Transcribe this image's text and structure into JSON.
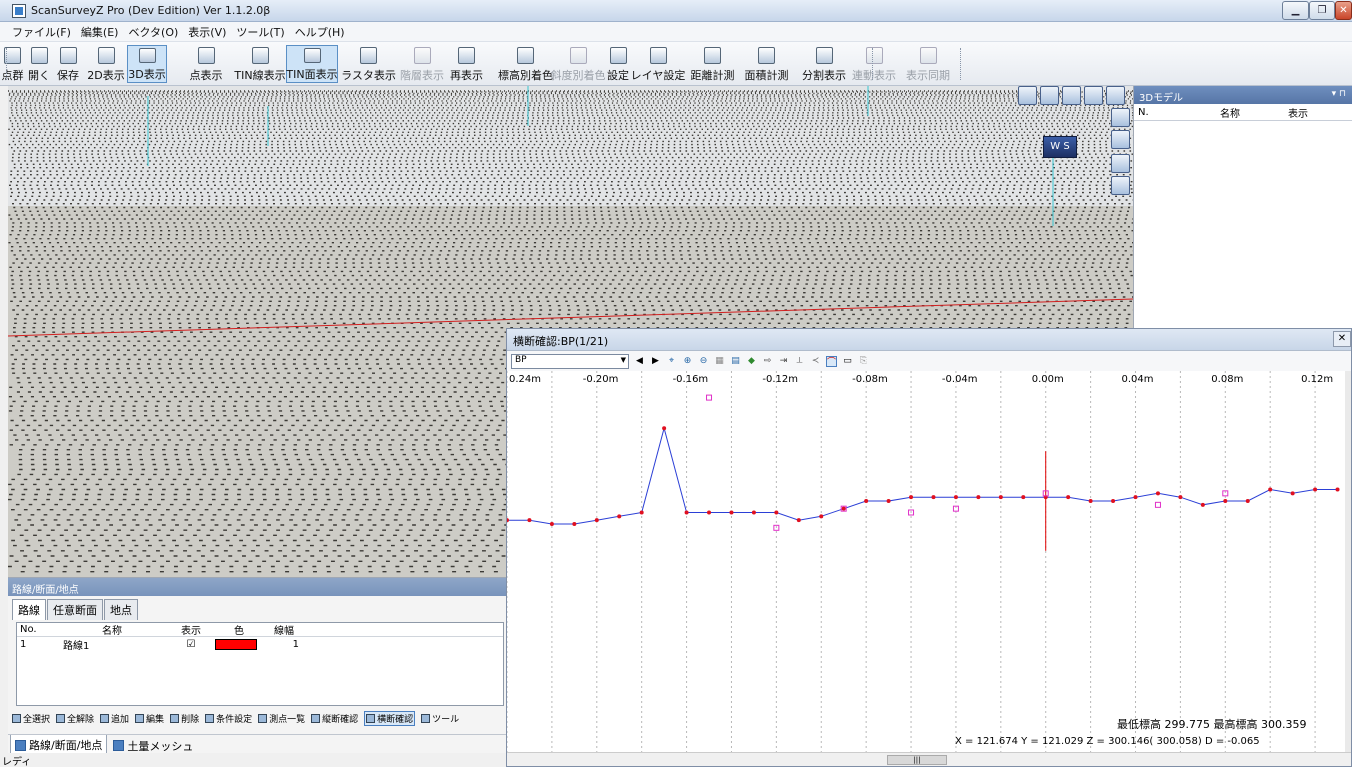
{
  "window": {
    "title": "ScanSurveyZ Pro (Dev Edition) Ver 1.1.2.0β"
  },
  "menu": [
    "ファイル(F)",
    "編集(E)",
    "ベクタ(O)",
    "表示(V)",
    "ツール(T)",
    "ヘルプ(H)"
  ],
  "toolbar": [
    {
      "label": "点群",
      "state": "normal"
    },
    {
      "label": "開く",
      "state": "normal"
    },
    {
      "label": "保存",
      "state": "normal"
    },
    {
      "label": "2D表示",
      "state": "normal"
    },
    {
      "label": "3D表示",
      "state": "active"
    },
    {
      "label": "点表示",
      "state": "normal"
    },
    {
      "label": "TIN線表示",
      "state": "normal"
    },
    {
      "label": "TIN面表示",
      "state": "active"
    },
    {
      "label": "ラスタ表示",
      "state": "normal"
    },
    {
      "label": "階層表示",
      "state": "disabled"
    },
    {
      "label": "再表示",
      "state": "normal"
    },
    {
      "label": "標高別着色",
      "state": "normal"
    },
    {
      "label": "斜度別着色",
      "state": "disabled"
    },
    {
      "label": "設定",
      "state": "normal"
    },
    {
      "label": "レイヤ設定",
      "state": "normal"
    },
    {
      "label": "距離計測",
      "state": "normal"
    },
    {
      "label": "面積計測",
      "state": "normal"
    },
    {
      "label": "分割表示",
      "state": "normal"
    },
    {
      "label": "連動表示",
      "state": "disabled"
    },
    {
      "label": "表示同期",
      "state": "disabled"
    }
  ],
  "model_panel": {
    "title": "3Dモデル",
    "columns": [
      "N.",
      "名称",
      "表示"
    ]
  },
  "viewport": {
    "compass_label": "W S"
  },
  "route_panel": {
    "title": "路線/断面/地点",
    "tabs": [
      "路線",
      "任意断面",
      "地点"
    ],
    "columns": [
      "No.",
      "名称",
      "表示",
      "色",
      "線幅"
    ],
    "rows": [
      {
        "no": "1",
        "name": "路線1",
        "visible": "☑",
        "color": "#ff0000",
        "width": "1"
      }
    ],
    "tools": [
      "全選択",
      "全解除",
      "追加",
      "編集",
      "削除",
      "条件設定",
      "測点一覧",
      "縦断確認",
      "横断確認",
      "ツール"
    ],
    "bottom_tabs": [
      "路線/断面/地点",
      "土量メッシュ"
    ]
  },
  "status": "レディ",
  "cross_section": {
    "title": "横断確認:BP(1/21)",
    "station_select": "BP",
    "close": "✕",
    "info_line1": "最低標高    299.775  最高標高    300.359",
    "info_line2": "X =    121.674  Y =    121.029  Z =    300.146(   300.058)  D =    -0.065",
    "chart_data": {
      "type": "line",
      "x_ticks": [
        "0.24m",
        "-0.20m",
        "-0.16m",
        "-0.12m",
        "-0.08m",
        "-0.04m",
        "0.00m",
        "0.04m",
        "0.08m",
        "0.12m",
        "0.1"
      ],
      "center_x": 0.0,
      "series": [
        {
          "points": [
            [
              -0.24,
              299.94
            ],
            [
              -0.23,
              299.94
            ],
            [
              -0.22,
              299.935
            ],
            [
              -0.21,
              299.935
            ],
            [
              -0.2,
              299.94
            ],
            [
              -0.19,
              299.945
            ],
            [
              -0.18,
              299.95
            ],
            [
              -0.17,
              300.06
            ],
            [
              -0.16,
              299.95
            ],
            [
              -0.15,
              299.95
            ],
            [
              -0.14,
              299.95
            ],
            [
              -0.13,
              299.95
            ],
            [
              -0.12,
              299.95
            ],
            [
              -0.11,
              299.94
            ],
            [
              -0.1,
              299.945
            ],
            [
              -0.09,
              299.955
            ],
            [
              -0.08,
              299.965
            ],
            [
              -0.07,
              299.965
            ],
            [
              -0.06,
              299.97
            ],
            [
              -0.05,
              299.97
            ],
            [
              -0.04,
              299.97
            ],
            [
              -0.03,
              299.97
            ],
            [
              -0.02,
              299.97
            ],
            [
              -0.01,
              299.97
            ],
            [
              0.0,
              299.97
            ],
            [
              0.01,
              299.97
            ],
            [
              0.02,
              299.965
            ],
            [
              0.03,
              299.965
            ],
            [
              0.04,
              299.97
            ],
            [
              0.05,
              299.975
            ],
            [
              0.06,
              299.97
            ],
            [
              0.07,
              299.96
            ],
            [
              0.08,
              299.965
            ],
            [
              0.09,
              299.965
            ],
            [
              0.1,
              299.98
            ],
            [
              0.11,
              299.975
            ],
            [
              0.12,
              299.98
            ],
            [
              0.13,
              299.98
            ]
          ]
        },
        {
          "points": [
            [
              -0.15,
              300.1
            ],
            [
              -0.12,
              299.93
            ],
            [
              -0.09,
              299.955
            ],
            [
              -0.06,
              299.95
            ],
            [
              -0.04,
              299.955
            ],
            [
              0.0,
              299.975
            ],
            [
              0.05,
              299.96
            ],
            [
              0.08,
              299.975
            ]
          ]
        }
      ]
    }
  }
}
